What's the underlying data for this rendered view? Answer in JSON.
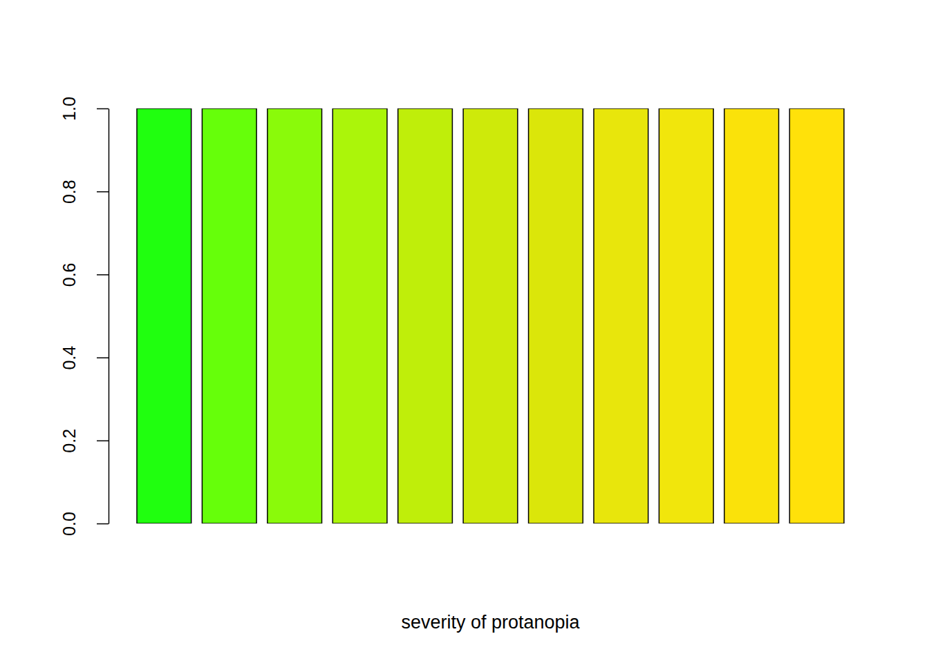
{
  "chart_data": {
    "type": "bar",
    "x_label": "severity of protanopia",
    "categories": [
      null,
      null,
      null,
      null,
      null,
      null,
      null,
      null,
      null,
      null,
      null
    ],
    "values": [
      1,
      1,
      1,
      1,
      1,
      1,
      1,
      1,
      1,
      1,
      1
    ],
    "colors": [
      "#20FF0F",
      "#66FF0A",
      "#8AFA0A",
      "#ABF50A",
      "#BFEE0A",
      "#CEEA0A",
      "#DBE60A",
      "#E8E60C",
      "#F1E60C",
      "#FAE20A",
      "#FFE10A"
    ],
    "ylim": [
      0,
      1
    ],
    "yticks": [
      {
        "value": 0,
        "label": "0.0"
      },
      0.2,
      0.4,
      0.6,
      0.8,
      {
        "value": 1,
        "label": "1.0"
      }
    ],
    "tick_labels": "y",
    "grid": false
  }
}
